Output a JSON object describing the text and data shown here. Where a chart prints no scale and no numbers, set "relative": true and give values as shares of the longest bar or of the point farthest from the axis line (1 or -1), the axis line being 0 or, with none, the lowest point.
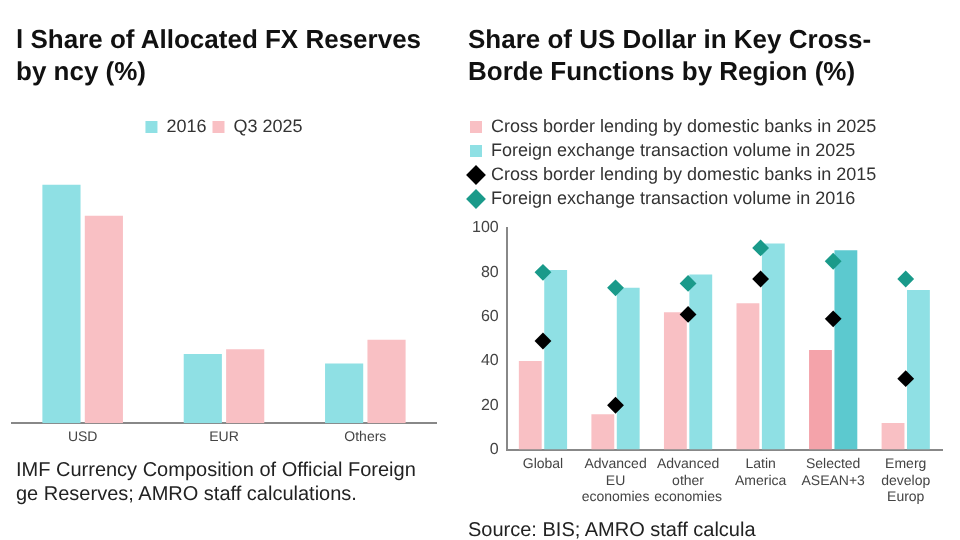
{
  "chart_data": [
    {
      "type": "bar",
      "title": "l Share of Allocated FX Reserves by ncy (%)",
      "categories": [
        "USD",
        "EUR",
        "Others"
      ],
      "relative": true,
      "grid": false,
      "legend": "top",
      "annotations": [
        "IMF Currency Composition of Official Foreign ge Reserves; AMRO staff calculations."
      ],
      "series": [
        {
          "name": "2016",
          "color": "#8fe0e4",
          "values": [
            1,
            0.29,
            0.25
          ]
        },
        {
          "name": "Q3 2025",
          "color": "#f9c0c4",
          "values": [
            0.87,
            0.31,
            0.35
          ]
        }
      ]
    },
    {
      "type": "bar",
      "title": "Share of US Dollar in Key Cross-Borde Functions by Region (%)",
      "categories": [
        "Global",
        "Advanced EU economies",
        "Advanced other economies",
        "Latin America",
        "Selected ASEAN+3",
        "Emerg develop Europ"
      ],
      "ylim": [
        0,
        100
      ],
      "yticks": [
        0,
        20,
        40,
        60,
        80,
        100
      ],
      "grid": false,
      "legend": "top",
      "annotations": [
        "Source: BIS; AMRO staff calcula"
      ],
      "series": [
        {
          "name": "Cross border lending by domestic banks in 2025",
          "color": "#f9c0c4",
          "colors": [
            "#f9c0c4",
            "#f9c0c4",
            "#f9c0c4",
            "#f9c0c4",
            "#f4a3aa",
            "#f9c0c4"
          ],
          "values": [
            40,
            16,
            62,
            66,
            45,
            12
          ]
        },
        {
          "name": "Foreign exchange transaction volume in 2025",
          "color": "#8fe0e4",
          "colors": [
            "#8fe0e4",
            "#8fe0e4",
            "#8fe0e4",
            "#8fe0e4",
            "#5cc9cf",
            "#8fe0e4"
          ],
          "values": [
            81,
            73,
            79,
            93,
            90,
            72
          ]
        },
        {
          "name": "Cross border lending by domestic banks in 2015",
          "type": "scatter",
          "marker": "diamond",
          "color": "#000000",
          "x": [
            "Global",
            "Advanced EU economies",
            "Advanced other economies",
            "Latin America",
            "Selected ASEAN+3",
            "Emerg develop Europ"
          ],
          "values": [
            49,
            20,
            61,
            77,
            59,
            32
          ]
        },
        {
          "name": "Foreign exchange transaction volume in 2016",
          "type": "scatter",
          "marker": "diamond",
          "color": "#1a9a8a",
          "x": [
            "Global",
            "Advanced EU economies",
            "Advanced other economies",
            "Latin America",
            "Selected ASEAN+3",
            "Emerg develop Europ"
          ],
          "values": [
            80,
            73,
            75,
            91,
            85,
            77
          ]
        }
      ]
    }
  ]
}
